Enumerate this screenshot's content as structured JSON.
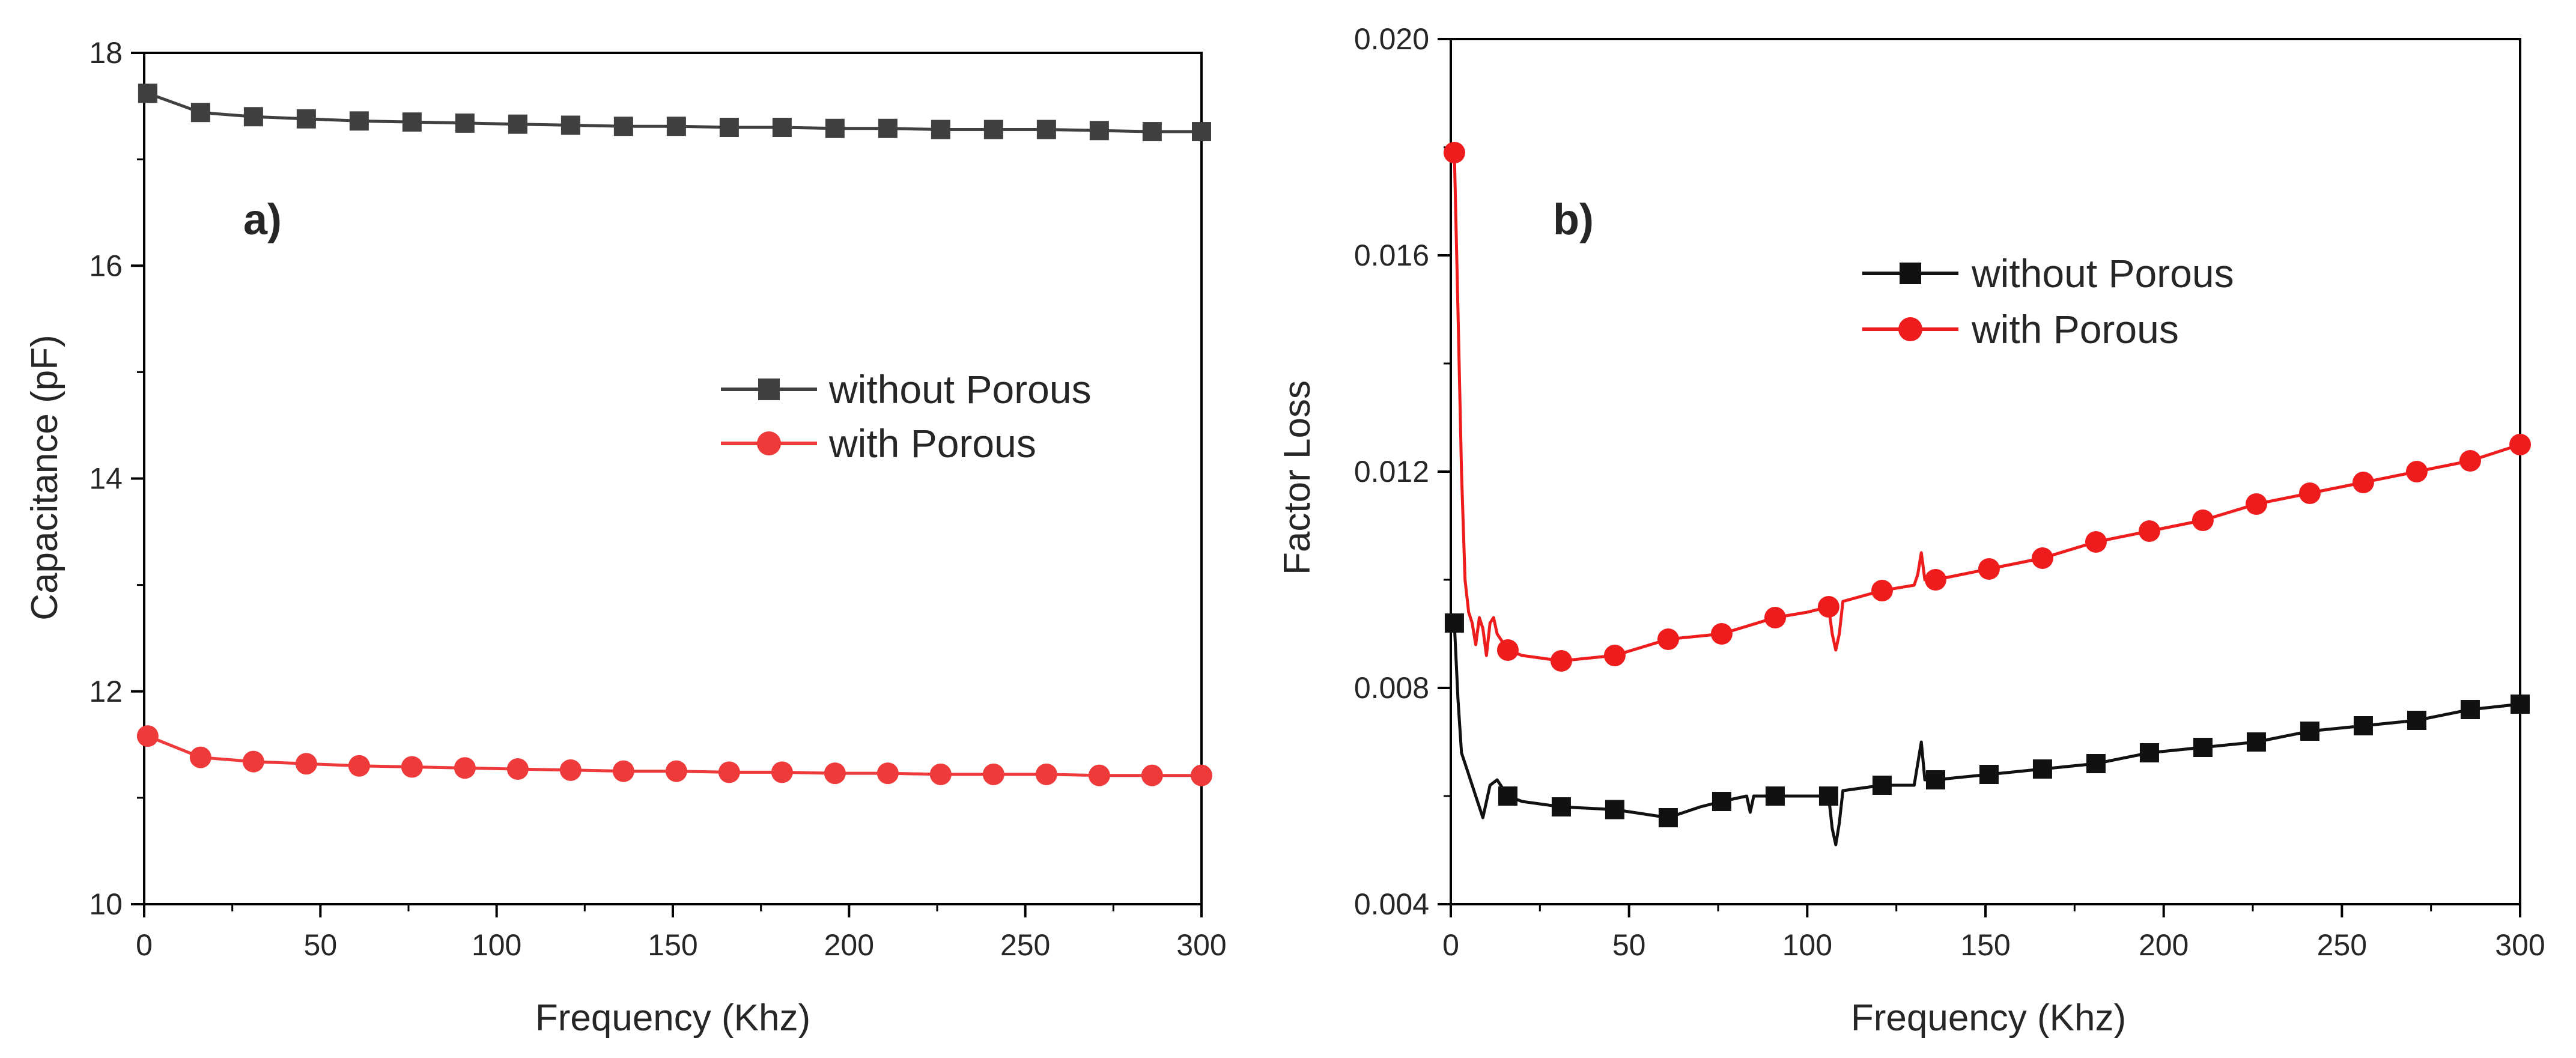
{
  "chart_data": [
    {
      "type": "line",
      "panel_label": "a)",
      "title": "",
      "xlabel": "Frequency (Khz)",
      "ylabel": "Capacitance (pF)",
      "xlim": [
        0,
        300
      ],
      "ylim": [
        10,
        18
      ],
      "xticks": [
        0,
        50,
        100,
        150,
        200,
        250,
        300
      ],
      "xtick_labels": [
        "0",
        "50",
        "100",
        "150",
        "200",
        "250",
        "300"
      ],
      "yticks": [
        10,
        12,
        14,
        16,
        18
      ],
      "ytick_labels": [
        "10",
        "12",
        "14",
        "16",
        "18"
      ],
      "legend_position": "center-right",
      "series": [
        {
          "name": "without Porous",
          "color": "#404040",
          "marker": "square",
          "x": [
            1,
            16,
            31,
            46,
            61,
            76,
            91,
            106,
            121,
            136,
            151,
            166,
            181,
            196,
            211,
            226,
            241,
            256,
            271,
            286,
            300
          ],
          "y": [
            17.62,
            17.44,
            17.4,
            17.38,
            17.36,
            17.35,
            17.34,
            17.33,
            17.32,
            17.31,
            17.31,
            17.3,
            17.3,
            17.29,
            17.29,
            17.28,
            17.28,
            17.28,
            17.27,
            17.26,
            17.26
          ]
        },
        {
          "name": "with Porous",
          "color": "#ee3a3a",
          "marker": "circle",
          "x": [
            1,
            16,
            31,
            46,
            61,
            76,
            91,
            106,
            121,
            136,
            151,
            166,
            181,
            196,
            211,
            226,
            241,
            256,
            271,
            286,
            300
          ],
          "y": [
            11.58,
            11.38,
            11.34,
            11.32,
            11.3,
            11.29,
            11.28,
            11.27,
            11.26,
            11.25,
            11.25,
            11.24,
            11.24,
            11.23,
            11.23,
            11.22,
            11.22,
            11.22,
            11.21,
            11.21,
            11.21
          ]
        }
      ]
    },
    {
      "type": "line",
      "panel_label": "b)",
      "title": "",
      "xlabel": "Frequency (Khz)",
      "ylabel": "Factor Loss",
      "xlim": [
        0,
        300
      ],
      "ylim": [
        0.004,
        0.02
      ],
      "xticks": [
        0,
        50,
        100,
        150,
        200,
        250,
        300
      ],
      "xtick_labels": [
        "0",
        "50",
        "100",
        "150",
        "200",
        "250",
        "300"
      ],
      "yticks": [
        0.004,
        0.008,
        0.012,
        0.016,
        0.02
      ],
      "ytick_labels": [
        "0.004",
        "0.008",
        "0.012",
        "0.016",
        "0.020"
      ],
      "legend_position": "top-right",
      "series": [
        {
          "name": "without Porous",
          "color": "#111111",
          "marker": "square",
          "x": [
            1,
            16,
            31,
            46,
            61,
            76,
            91,
            106,
            121,
            136,
            151,
            166,
            181,
            196,
            211,
            226,
            241,
            256,
            271,
            286,
            300
          ],
          "y": [
            0.0092,
            0.006,
            0.0058,
            0.00575,
            0.0056,
            0.0059,
            0.006,
            0.006,
            0.0062,
            0.0063,
            0.0064,
            0.0065,
            0.0066,
            0.0068,
            0.0069,
            0.007,
            0.0072,
            0.0073,
            0.0074,
            0.0076,
            0.0077
          ],
          "line_x": [
            1,
            2,
            3,
            5,
            7,
            9,
            11,
            13,
            16,
            20,
            31,
            46,
            61,
            70,
            76,
            83,
            84,
            85,
            86,
            91,
            100,
            106,
            107,
            108,
            109,
            110,
            121,
            130,
            131,
            132,
            133,
            136,
            151,
            166,
            181,
            196,
            211,
            226,
            241,
            256,
            271,
            286,
            300
          ],
          "line_y": [
            0.0092,
            0.0078,
            0.0068,
            0.0064,
            0.006,
            0.0056,
            0.0062,
            0.0063,
            0.006,
            0.0059,
            0.0058,
            0.00575,
            0.0056,
            0.0058,
            0.0059,
            0.006,
            0.0057,
            0.006,
            0.006,
            0.006,
            0.006,
            0.006,
            0.0054,
            0.0051,
            0.0055,
            0.0061,
            0.0062,
            0.0062,
            0.0066,
            0.007,
            0.0063,
            0.0063,
            0.0064,
            0.0065,
            0.0066,
            0.0068,
            0.0069,
            0.007,
            0.0072,
            0.0073,
            0.0074,
            0.0076,
            0.0077
          ]
        },
        {
          "name": "with Porous",
          "color": "#ee1c1c",
          "marker": "circle",
          "x": [
            1,
            16,
            31,
            46,
            61,
            76,
            91,
            106,
            121,
            136,
            151,
            166,
            181,
            196,
            211,
            226,
            241,
            256,
            271,
            286,
            300
          ],
          "y": [
            0.0179,
            0.0087,
            0.0085,
            0.0086,
            0.0089,
            0.009,
            0.0093,
            0.0095,
            0.0098,
            0.01,
            0.0102,
            0.0104,
            0.0107,
            0.0109,
            0.0111,
            0.0114,
            0.0116,
            0.0118,
            0.012,
            0.0122,
            0.0125
          ],
          "line_x": [
            1,
            2,
            3,
            4,
            5,
            6,
            7,
            8,
            9,
            10,
            11,
            12,
            13,
            16,
            20,
            31,
            46,
            61,
            76,
            91,
            100,
            106,
            107,
            108,
            109,
            110,
            121,
            130,
            131,
            132,
            133,
            136,
            151,
            166,
            181,
            196,
            211,
            226,
            241,
            256,
            271,
            286,
            300
          ],
          "line_y": [
            0.0179,
            0.015,
            0.012,
            0.01,
            0.0094,
            0.0092,
            0.0088,
            0.0093,
            0.0091,
            0.0086,
            0.0092,
            0.0093,
            0.009,
            0.0087,
            0.0086,
            0.0085,
            0.0086,
            0.0089,
            0.009,
            0.0093,
            0.0094,
            0.0095,
            0.009,
            0.0087,
            0.009,
            0.0096,
            0.0098,
            0.0099,
            0.0101,
            0.0105,
            0.01,
            0.01,
            0.0102,
            0.0104,
            0.0107,
            0.0109,
            0.0111,
            0.0114,
            0.0116,
            0.0118,
            0.012,
            0.0122,
            0.0125
          ]
        }
      ]
    }
  ]
}
